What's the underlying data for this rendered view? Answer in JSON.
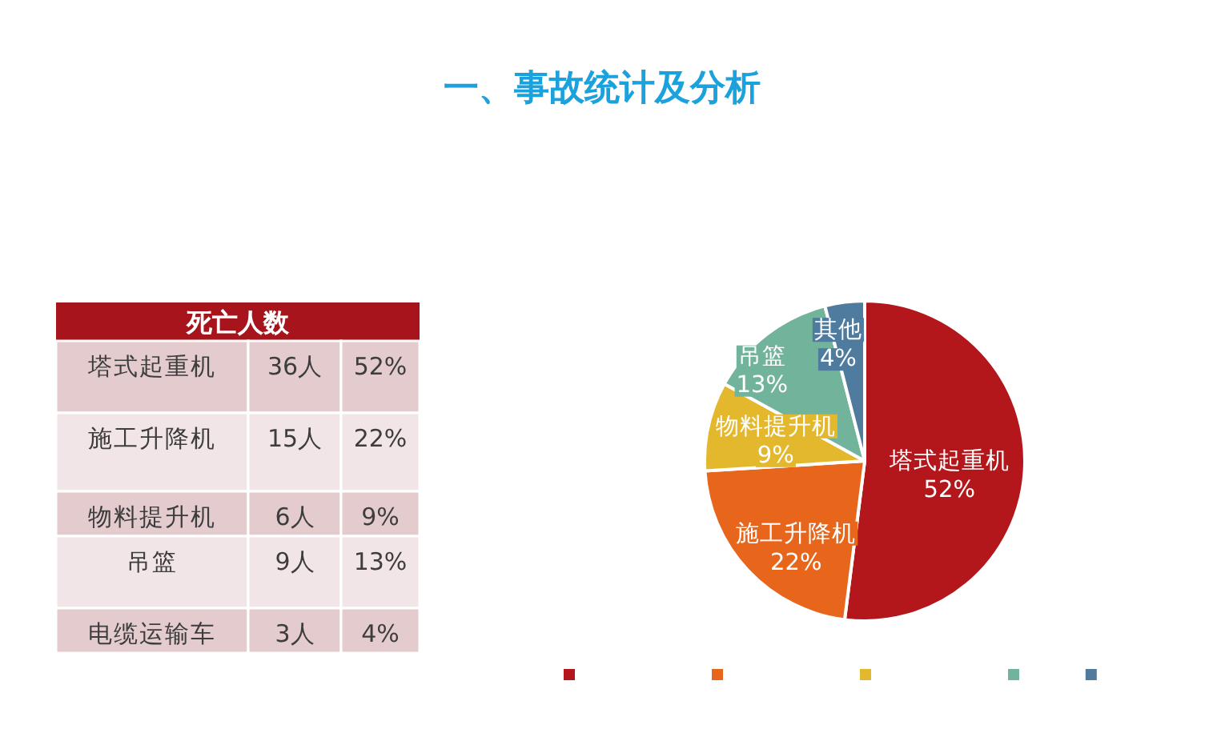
{
  "chart_data": [
    {
      "type": "other",
      "title": "死亡人数",
      "categories": [
        "塔式起重机",
        "施工升降机",
        "物料提升机",
        "吊篮",
        "电缆运输车"
      ],
      "series": [
        {
          "values": [
            36,
            15,
            6,
            9,
            3
          ],
          "value_labels": [
            "36人",
            "15人",
            "6人",
            "9人",
            "3人"
          ],
          "colors": [
            "#e4cbce",
            "#f2e5e7",
            "#e4cbce",
            "#f2e5e7",
            "#e4cbce"
          ]
        },
        {
          "values": [
            52,
            22,
            9,
            13,
            4
          ],
          "value_labels": [
            "52%",
            "22%",
            "9%",
            "13%",
            "4%"
          ],
          "colors": [
            "#e4cbce",
            "#f2e5e7",
            "#e4cbce",
            "#f2e5e7",
            "#e4cbce"
          ]
        }
      ]
    },
    {
      "type": "pie",
      "title": "一、事故统计及分析",
      "categories": [
        "塔式起重机",
        "施工升降机",
        "物料提升机",
        "吊篮",
        "其他"
      ],
      "values": [
        52,
        22,
        9,
        13,
        4
      ],
      "value_labels": [
        "52%",
        "22%",
        "9%",
        "13%",
        "4%"
      ],
      "colors": [
        "#b3161b",
        "#e8661c",
        "#e4b82d",
        "#72b39c",
        "#4f7b9f"
      ]
    }
  ]
}
